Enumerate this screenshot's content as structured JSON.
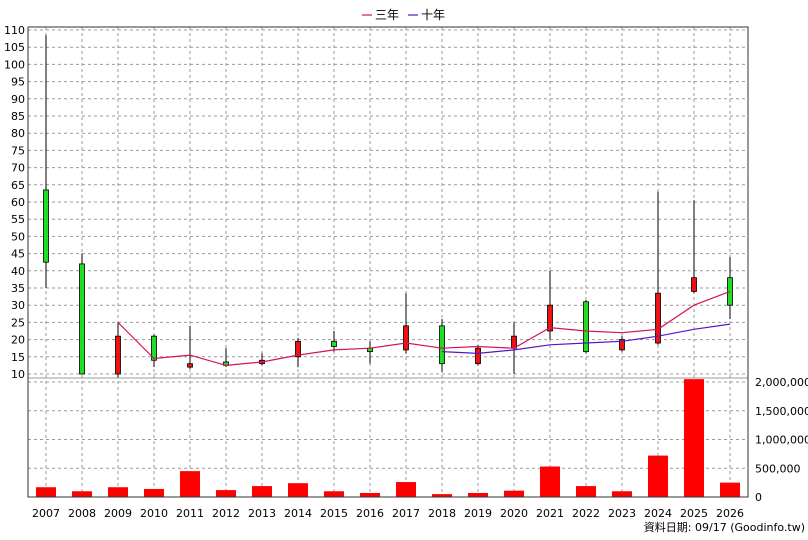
{
  "legend": [
    {
      "label": "三年",
      "color": "#d4145a"
    },
    {
      "label": "十年",
      "color": "#5a14c8"
    }
  ],
  "footer": "資料日期: 09/17  (Goodinfo.tw)",
  "chart_data": {
    "type": "candlestick_with_volume",
    "title": "",
    "years": [
      "2007",
      "2008",
      "2009",
      "2010",
      "2011",
      "2012",
      "2013",
      "2014",
      "2015",
      "2016",
      "2017",
      "2018",
      "2019",
      "2020",
      "2021",
      "2022",
      "2023",
      "2024",
      "2025",
      "2026"
    ],
    "price_axis": {
      "min": 10,
      "max": 110,
      "step": 5,
      "ticks": [
        10,
        15,
        20,
        25,
        30,
        35,
        40,
        45,
        50,
        55,
        60,
        65,
        70,
        75,
        80,
        85,
        90,
        95,
        100,
        105,
        110
      ]
    },
    "volume_axis": {
      "min": 0,
      "max": 2000000,
      "ticks": [
        0,
        500000,
        1000000,
        1500000,
        2000000
      ],
      "tick_labels": [
        "0",
        "500,000",
        "1,000,000",
        "1,500,000",
        "2,000,000"
      ]
    },
    "candles": [
      {
        "open": 42.5,
        "close": 63.5,
        "high": 108.5,
        "low": 35.0,
        "color": "green"
      },
      {
        "open": 10.0,
        "close": 42.0,
        "high": 45.0,
        "low": 10.0,
        "color": "green"
      },
      {
        "open": 21.0,
        "close": 10.0,
        "high": 25.0,
        "low": 9.0,
        "color": "red"
      },
      {
        "open": 14.0,
        "close": 21.0,
        "high": 21.5,
        "low": 12.0,
        "color": "green"
      },
      {
        "open": 13.0,
        "close": 12.0,
        "high": 24.0,
        "low": 11.5,
        "color": "red"
      },
      {
        "open": 12.5,
        "close": 13.5,
        "high": 17.5,
        "low": 12.0,
        "color": "green"
      },
      {
        "open": 14.0,
        "close": 13.0,
        "high": 16.0,
        "low": 12.5,
        "color": "red"
      },
      {
        "open": 19.5,
        "close": 15.0,
        "high": 20.5,
        "low": 12.0,
        "color": "red"
      },
      {
        "open": 18.0,
        "close": 19.5,
        "high": 22.5,
        "low": 16.5,
        "color": "green"
      },
      {
        "open": 16.5,
        "close": 17.5,
        "high": 19.5,
        "low": 13.0,
        "color": "green"
      },
      {
        "open": 24.0,
        "close": 17.0,
        "high": 33.5,
        "low": 16.0,
        "color": "red"
      },
      {
        "open": 13.0,
        "close": 24.0,
        "high": 26.0,
        "low": 10.5,
        "color": "green"
      },
      {
        "open": 17.5,
        "close": 13.0,
        "high": 18.5,
        "low": 12.5,
        "color": "red"
      },
      {
        "open": 17.5,
        "close": 21.0,
        "high": 25.0,
        "low": 10.0,
        "color": "red"
      },
      {
        "open": 22.5,
        "close": 30.0,
        "high": 40.0,
        "low": 20.0,
        "color": "red"
      },
      {
        "open": 16.5,
        "close": 31.0,
        "high": 31.5,
        "low": 16.0,
        "color": "green"
      },
      {
        "open": 20.0,
        "close": 17.0,
        "high": 21.0,
        "low": 16.5,
        "color": "red"
      },
      {
        "open": 33.5,
        "close": 19.0,
        "high": 63.0,
        "low": 18.5,
        "color": "red"
      },
      {
        "open": 38.0,
        "close": 34.0,
        "high": 60.5,
        "low": 33.5,
        "color": "red"
      },
      {
        "open": 30.0,
        "close": 38.0,
        "high": 44.0,
        "low": 26.0,
        "color": "green"
      }
    ],
    "series": [
      {
        "name": "三年",
        "color": "#d4145a",
        "start_index": 2,
        "values": [
          25.0,
          14.5,
          15.5,
          12.5,
          13.5,
          15.5,
          17.0,
          17.5,
          19.0,
          17.5,
          18.0,
          17.5,
          23.5,
          22.5,
          22.0,
          23.0,
          30.0,
          34.0
        ]
      },
      {
        "name": "十年",
        "color": "#5a14c8",
        "start_index": 11,
        "values": [
          16.5,
          16.0,
          17.0,
          18.5,
          19.0,
          19.5,
          21.0,
          23.0,
          24.5
        ]
      }
    ],
    "volumes": [
      170000,
      100000,
      170000,
      140000,
      450000,
      120000,
      190000,
      240000,
      100000,
      70000,
      260000,
      50000,
      70000,
      110000,
      530000,
      190000,
      100000,
      720000,
      2050000,
      250000
    ],
    "volume_color": "#ff0000"
  }
}
